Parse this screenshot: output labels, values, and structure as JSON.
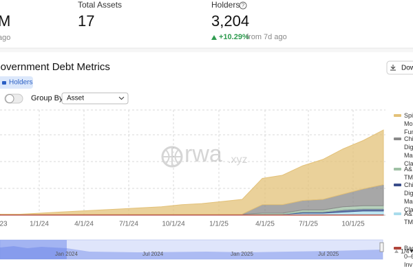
{
  "stats": [
    {
      "value": "M",
      "caption": "ago"
    },
    {
      "label": "Total Assets",
      "value": "17"
    },
    {
      "label": "Holders",
      "value": "3,204",
      "change": "+10.29%",
      "caption": "from 7d ago"
    }
  ],
  "panel": {
    "title": "Government Debt Metrics",
    "download": "Download",
    "tab": "Holders",
    "group_by": "Group By",
    "group_value": "Asset",
    "watermark": "rwa",
    "watermark_suffix": ".xyz",
    "legend_page": "1/4"
  },
  "chart_data": {
    "type": "area",
    "stacked": true,
    "xticks": [
      "23",
      "1/1/24",
      "4/1/24",
      "7/1/24",
      "10/1/24",
      "1/1/25",
      "4/1/25",
      "7/1/25",
      "10/1/25"
    ],
    "ylim": [
      0,
      100
    ],
    "series": [
      {
        "name": "Bac 0–6 Inv",
        "color": "#b0453b",
        "values": [
          1,
          1,
          1,
          1,
          1,
          1,
          1,
          1,
          1,
          1,
          1,
          1,
          1,
          1,
          1,
          1,
          1,
          1,
          1,
          1
        ]
      },
      {
        "name": "A& TM",
        "color": "#a9dcec",
        "values": [
          0,
          0,
          0,
          0,
          0,
          0,
          0,
          0,
          0,
          0,
          0,
          0,
          0,
          0,
          0,
          1,
          1,
          2,
          3,
          3
        ]
      },
      {
        "name": "Chi Dig Ma Cla",
        "color": "#3a4d8a",
        "values": [
          0,
          0,
          0,
          0,
          0,
          0,
          0,
          0,
          0,
          0,
          0,
          0,
          0,
          0,
          0,
          1,
          1,
          2,
          2,
          2
        ]
      },
      {
        "name": "A& TM",
        "color": "#9fc0a5",
        "values": [
          0,
          0,
          0,
          0,
          0,
          0,
          0,
          0,
          0,
          0,
          0,
          0,
          0,
          1,
          1,
          2,
          2,
          3,
          3,
          3
        ]
      },
      {
        "name": "Chi Dig Ma Cla",
        "color": "#8a8a8a",
        "values": [
          0,
          0,
          0,
          0,
          0,
          0,
          0,
          0,
          0,
          0,
          0,
          0,
          0,
          8,
          8,
          9,
          10,
          12,
          16,
          20
        ]
      },
      {
        "name": "Spi Mo Fun",
        "color": "#e3c178",
        "values": [
          0,
          0,
          1,
          2,
          3,
          4,
          5,
          6,
          7,
          9,
          10,
          12,
          14,
          25,
          28,
          33,
          38,
          43,
          46,
          52
        ]
      }
    ]
  },
  "navigator": {
    "labels": [
      "Jan 2024",
      "Jul 2024",
      "Jan 2025",
      "Jul 2025"
    ]
  }
}
